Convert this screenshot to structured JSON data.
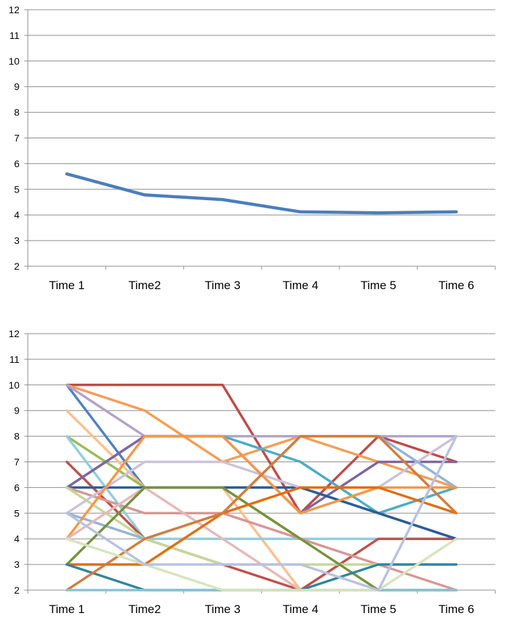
{
  "chart_data": [
    {
      "type": "line",
      "categories": [
        "Time 1",
        "Time2",
        "Time 3",
        "Time 4",
        "Time 5",
        "Time 6"
      ],
      "ylim": [
        2,
        12
      ],
      "yticks": [
        2,
        3,
        4,
        5,
        6,
        7,
        8,
        9,
        10,
        11,
        12
      ],
      "grid": true,
      "series": [
        {
          "values": [
            5.6,
            4.78,
            4.6,
            4.12,
            4.08,
            4.12
          ],
          "color": "#4a7ebb"
        }
      ]
    },
    {
      "type": "line",
      "categories": [
        "Time 1",
        "Time2",
        "Time 3",
        "Time 4",
        "Time 5",
        "Time 6"
      ],
      "ylim": [
        2,
        12
      ],
      "yticks": [
        2,
        3,
        4,
        5,
        6,
        7,
        8,
        9,
        10,
        11,
        12
      ],
      "grid": true,
      "series": [
        {
          "values": [
            10,
            10,
            10,
            5,
            8,
            7
          ],
          "color": "#be4b48"
        },
        {
          "values": [
            10,
            9,
            7,
            8,
            7,
            6
          ],
          "color": "#f59d56"
        },
        {
          "values": [
            10,
            6,
            6,
            6,
            5,
            4
          ],
          "color": "#4f81bd"
        },
        {
          "values": [
            10,
            8,
            8,
            8,
            8,
            8
          ],
          "color": "#b3a2c7"
        },
        {
          "values": [
            9,
            6,
            6,
            2,
            2,
            2
          ],
          "color": "#fac090"
        },
        {
          "values": [
            8,
            6,
            6,
            4,
            4,
            4
          ],
          "color": "#9bbb59"
        },
        {
          "values": [
            8,
            4,
            4,
            4,
            4,
            4
          ],
          "color": "#93cddd"
        },
        {
          "values": [
            7,
            4,
            3,
            2,
            4,
            4
          ],
          "color": "#c0504d"
        },
        {
          "values": [
            6,
            8,
            8,
            7,
            5,
            6
          ],
          "color": "#4bacc6"
        },
        {
          "values": [
            6,
            8,
            8,
            5,
            7,
            7
          ],
          "color": "#8064a2"
        },
        {
          "values": [
            6,
            6,
            6,
            6,
            5,
            4
          ],
          "color": "#2c5d97"
        },
        {
          "values": [
            6,
            5,
            5,
            4,
            3,
            2
          ],
          "color": "#d99694"
        },
        {
          "values": [
            6,
            4,
            3,
            3,
            3,
            3
          ],
          "color": "#c4d79b"
        },
        {
          "values": [
            5,
            7,
            7,
            6,
            6,
            8
          ],
          "color": "#ccc1da"
        },
        {
          "values": [
            5,
            4,
            5,
            8,
            8,
            6
          ],
          "color": "#95b3d7"
        },
        {
          "values": [
            4,
            8,
            8,
            5,
            6,
            6
          ],
          "color": "#f79646"
        },
        {
          "values": [
            4,
            6,
            4,
            2,
            2,
            2
          ],
          "color": "#e6b9b8"
        },
        {
          "values": [
            3,
            6,
            6,
            4,
            2,
            2
          ],
          "color": "#76923c"
        },
        {
          "values": [
            3,
            3,
            5,
            6,
            6,
            5
          ],
          "color": "#e46c0a"
        },
        {
          "values": [
            3,
            2,
            2,
            2,
            3,
            3
          ],
          "color": "#31859c"
        },
        {
          "values": [
            2,
            4,
            5,
            8,
            8,
            5
          ],
          "color": "#d37c3b"
        },
        {
          "values": [
            2,
            2,
            2,
            2,
            2,
            2
          ],
          "color": "#87c3d9"
        },
        {
          "values": [
            4,
            3,
            2,
            2,
            2,
            4
          ],
          "color": "#d7e4bd"
        },
        {
          "values": [
            5,
            3,
            3,
            3,
            2,
            8
          ],
          "color": "#b7c2e0"
        }
      ]
    }
  ]
}
